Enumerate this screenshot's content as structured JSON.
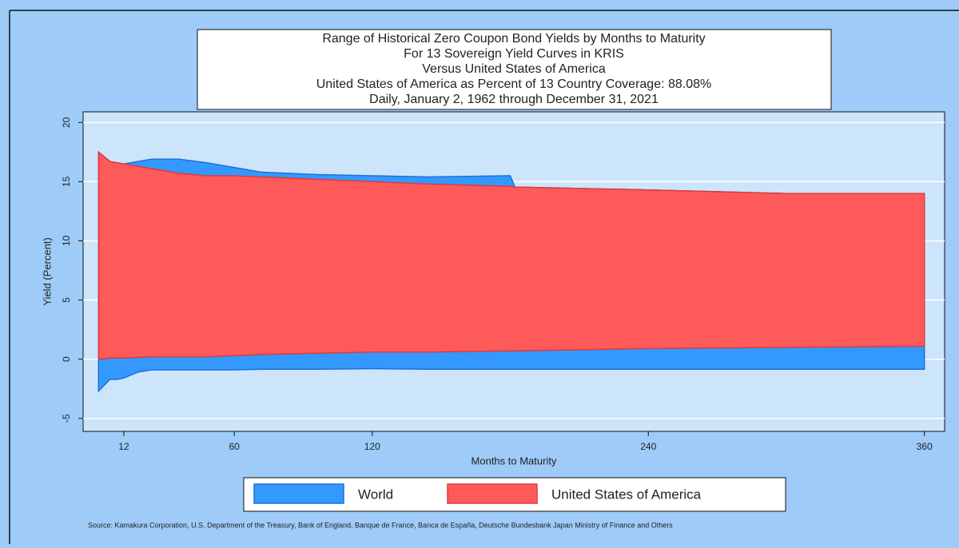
{
  "chart_data": {
    "type": "range_area",
    "title": "Range of Historical Zero Coupon Bond Yields by Months to Maturity",
    "subtitles": [
      "For 13 Sovereign Yield Curves in KRIS",
      "Versus United States of America",
      "United States of America as Percent of 13 Country Coverage: 88.08%",
      "Daily, January 2, 1962 through December 31, 2021"
    ],
    "x_label": "Months to Maturity",
    "y_label": "Yield (Percent)",
    "source": "Source: Kamakura Corporation, U.S. Department of the Treasury, Bank of England, Banque de France, Banca de España, Deutsche Bundesbank Japan Ministry of Finance and Others",
    "x": [
      1,
      6,
      9,
      12,
      18,
      24,
      36,
      48,
      60,
      72,
      96,
      120,
      144,
      180,
      182,
      240,
      300,
      360
    ],
    "series": [
      {
        "name": "World",
        "color": "#3399ff",
        "high": [
          17.5,
          16.7,
          16.6,
          16.5,
          16.7,
          16.9,
          16.9,
          16.6,
          16.2,
          15.8,
          15.6,
          15.5,
          15.4,
          15.5,
          14.55,
          14.3,
          14.0,
          14.0
        ],
        "low": [
          -2.7,
          -1.7,
          -1.7,
          -1.6,
          -1.1,
          -0.9,
          -0.9,
          -0.9,
          -0.9,
          -0.85,
          -0.85,
          -0.8,
          -0.85,
          -0.85,
          -0.85,
          -0.85,
          -0.85,
          -0.85
        ]
      },
      {
        "name": "United States of America",
        "color": "#ff5a5a",
        "high": [
          17.5,
          16.7,
          16.6,
          16.5,
          16.3,
          16.1,
          15.7,
          15.5,
          15.5,
          15.4,
          15.2,
          15.0,
          14.8,
          14.6,
          14.55,
          14.3,
          14.0,
          14.0
        ],
        "low": [
          0.0,
          0.1,
          0.1,
          0.1,
          0.15,
          0.2,
          0.2,
          0.2,
          0.3,
          0.4,
          0.5,
          0.6,
          0.6,
          0.7,
          0.7,
          0.9,
          1.0,
          1.1
        ]
      }
    ],
    "xlim": [
      -5.7,
      368.8
    ],
    "ylim": [
      -6.1,
      20.9
    ],
    "xticks": [
      12,
      60,
      120,
      240,
      360
    ],
    "yticks": [
      -5,
      0,
      5,
      10,
      15,
      20
    ],
    "grid": true
  }
}
